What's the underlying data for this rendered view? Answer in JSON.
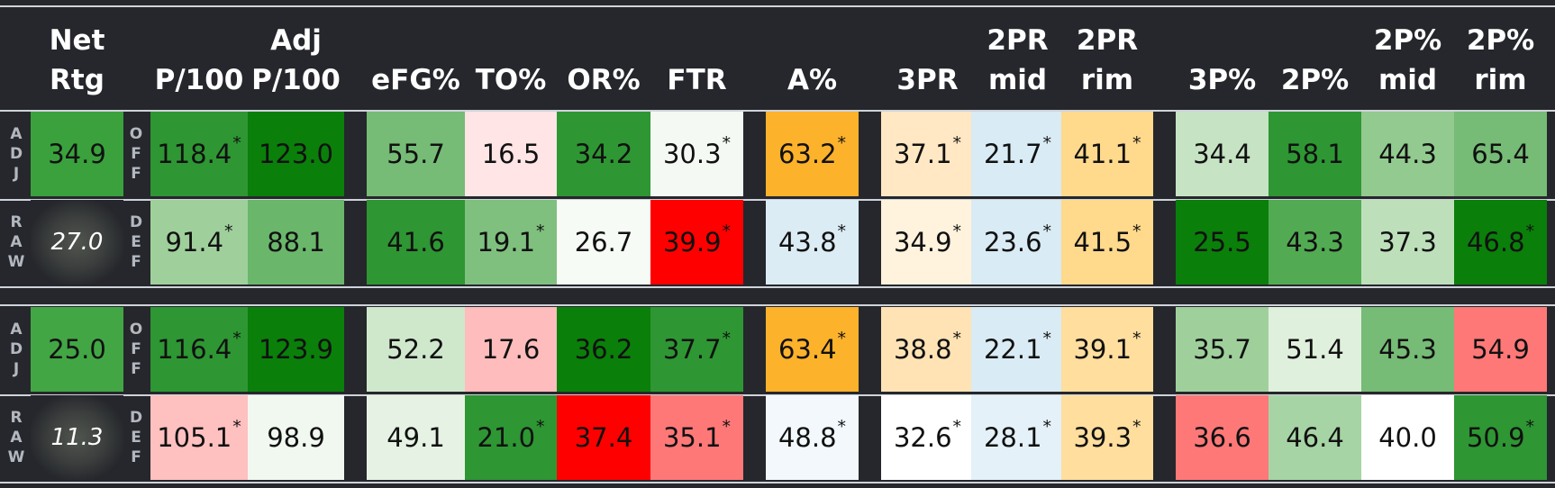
{
  "headers": {
    "net": [
      "Net",
      "Rtg"
    ],
    "p100": [
      "",
      "P/100"
    ],
    "adjp100": [
      "Adj",
      "P/100"
    ],
    "efg": [
      "",
      "eFG%"
    ],
    "to": [
      "",
      "TO%"
    ],
    "or": [
      "",
      "OR%"
    ],
    "ftr": [
      "",
      "FTR"
    ],
    "a": [
      "",
      "A%"
    ],
    "threepr": [
      "",
      "3PR"
    ],
    "twopr_mid": [
      "2PR",
      "mid"
    ],
    "twopr_rim": [
      "2PR",
      "rim"
    ],
    "threep": [
      "",
      "3P%"
    ],
    "twop": [
      "",
      "2P%"
    ],
    "twop_mid": [
      "2P%",
      "mid"
    ],
    "twop_rim": [
      "2P%",
      "rim"
    ]
  },
  "side_labels": {
    "adj": "ADJ",
    "raw": "RAW",
    "off": "OFF",
    "def": "DEF"
  },
  "teams": [
    {
      "net_adj": "34.9",
      "net_raw": "27.0",
      "off": [
        {
          "v": "118.4",
          "s": "*",
          "c": "#2e9633"
        },
        {
          "v": "123.0",
          "s": "",
          "c": "#0a7f0a"
        },
        {
          "v": "55.7",
          "s": "",
          "c": "#76bb76"
        },
        {
          "v": "16.5",
          "s": "",
          "c": "#ffe5e5"
        },
        {
          "v": "34.2",
          "s": "",
          "c": "#2e9633"
        },
        {
          "v": "30.3",
          "s": "*",
          "c": "#f4f9f3"
        },
        {
          "v": "63.2",
          "s": "*",
          "c": "#fdb22b"
        },
        {
          "v": "37.1",
          "s": "*",
          "c": "#ffe8c3"
        },
        {
          "v": "21.7",
          "s": "*",
          "c": "#d9ebf4"
        },
        {
          "v": "41.1",
          "s": "*",
          "c": "#ffd98c"
        },
        {
          "v": "34.4",
          "s": "",
          "c": "#c6e3c4"
        },
        {
          "v": "58.1",
          "s": "",
          "c": "#2e9633"
        },
        {
          "v": "44.3",
          "s": "",
          "c": "#92ca90"
        },
        {
          "v": "65.4",
          "s": "",
          "c": "#76bb76"
        }
      ],
      "def": [
        {
          "v": "91.4",
          "s": "*",
          "c": "#9fd09c"
        },
        {
          "v": "88.1",
          "s": "",
          "c": "#6ab76b"
        },
        {
          "v": "41.6",
          "s": "",
          "c": "#2e9633"
        },
        {
          "v": "19.1",
          "s": "*",
          "c": "#7fc07f"
        },
        {
          "v": "26.7",
          "s": "",
          "c": "#f7fbf6"
        },
        {
          "v": "39.9",
          "s": "*",
          "c": "#ff0000"
        },
        {
          "v": "43.8",
          "s": "*",
          "c": "#dbecf5"
        },
        {
          "v": "34.9",
          "s": "*",
          "c": "#fff3dd"
        },
        {
          "v": "23.6",
          "s": "*",
          "c": "#d9ebf4"
        },
        {
          "v": "41.5",
          "s": "*",
          "c": "#ffd98c"
        },
        {
          "v": "25.5",
          "s": "",
          "c": "#0a7f0a"
        },
        {
          "v": "43.3",
          "s": "",
          "c": "#52ab53"
        },
        {
          "v": "37.3",
          "s": "",
          "c": "#bde0bb"
        },
        {
          "v": "46.8",
          "s": "*",
          "c": "#0a7f0a"
        }
      ],
      "net_adj_color": "#3aa13c"
    },
    {
      "net_adj": "25.0",
      "net_raw": "11.3",
      "off": [
        {
          "v": "116.4",
          "s": "*",
          "c": "#2e9633"
        },
        {
          "v": "123.9",
          "s": "",
          "c": "#0a7f0a"
        },
        {
          "v": "52.2",
          "s": "",
          "c": "#cfe8cc"
        },
        {
          "v": "17.6",
          "s": "",
          "c": "#ffbcbc"
        },
        {
          "v": "36.2",
          "s": "",
          "c": "#0a7f0a"
        },
        {
          "v": "37.7",
          "s": "*",
          "c": "#2e9633"
        },
        {
          "v": "63.4",
          "s": "*",
          "c": "#fdb22b"
        },
        {
          "v": "38.8",
          "s": "*",
          "c": "#ffe3b5"
        },
        {
          "v": "22.1",
          "s": "*",
          "c": "#d9ebf4"
        },
        {
          "v": "39.1",
          "s": "*",
          "c": "#ffde9e"
        },
        {
          "v": "35.7",
          "s": "",
          "c": "#9fd09c"
        },
        {
          "v": "51.4",
          "s": "",
          "c": "#dff0dc"
        },
        {
          "v": "45.3",
          "s": "",
          "c": "#76bb76"
        },
        {
          "v": "54.9",
          "s": "",
          "c": "#ff7878"
        }
      ],
      "def": [
        {
          "v": "105.1",
          "s": "*",
          "c": "#ffc0c0"
        },
        {
          "v": "98.9",
          "s": "",
          "c": "#f1f8f0"
        },
        {
          "v": "49.1",
          "s": "",
          "c": "#e6f3e4"
        },
        {
          "v": "21.0",
          "s": "*",
          "c": "#2e9633"
        },
        {
          "v": "37.4",
          "s": "",
          "c": "#ff0000"
        },
        {
          "v": "35.1",
          "s": "*",
          "c": "#ff7878"
        },
        {
          "v": "48.8",
          "s": "*",
          "c": "#f2f8fb"
        },
        {
          "v": "32.6",
          "s": "*",
          "c": "#ffffff"
        },
        {
          "v": "28.1",
          "s": "*",
          "c": "#e4f1f8"
        },
        {
          "v": "39.3",
          "s": "*",
          "c": "#ffde9e"
        },
        {
          "v": "36.6",
          "s": "",
          "c": "#ff7878"
        },
        {
          "v": "46.4",
          "s": "",
          "c": "#a7d4a5"
        },
        {
          "v": "40.0",
          "s": "",
          "c": "#ffffff"
        },
        {
          "v": "50.9",
          "s": "*",
          "c": "#2e9633"
        }
      ],
      "net_adj_color": "#42a645"
    }
  ]
}
